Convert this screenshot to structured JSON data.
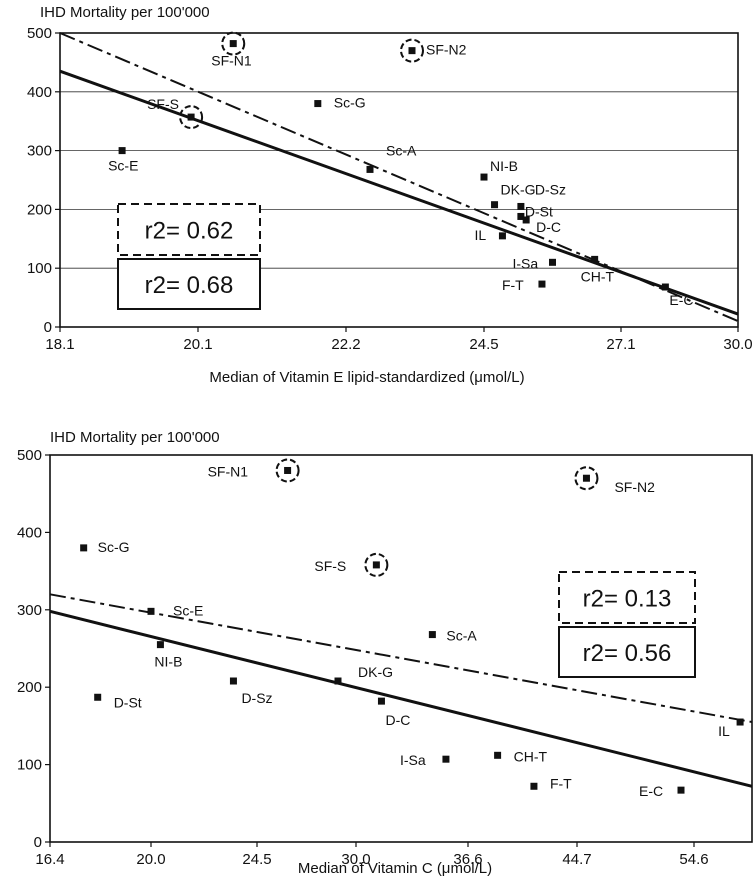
{
  "chart_data": [
    {
      "type": "scatter",
      "title": "",
      "ylabel": "IHD Mortality per 100'000",
      "xlabel": "Median of Vitamin E lipid-standardized (μmol/L)",
      "x_ticks": [
        "18.1",
        "20.1",
        "22.2",
        "24.5",
        "27.1",
        "30.0"
      ],
      "y_ticks": [
        0,
        100,
        200,
        300,
        400,
        500
      ],
      "ylim": [
        0,
        500
      ],
      "grid": "horizontal",
      "points": [
        {
          "label": "SF-N1",
          "x": 20.6,
          "y": 482,
          "circled": true
        },
        {
          "label": "SF-N2",
          "x": 23.3,
          "y": 470,
          "circled": true
        },
        {
          "label": "SF-S",
          "x": 20.0,
          "y": 357,
          "circled": true
        },
        {
          "label": "Sc-G",
          "x": 21.8,
          "y": 380
        },
        {
          "label": "Sc-E",
          "x": 19.0,
          "y": 300
        },
        {
          "label": "Sc-A",
          "x": 22.6,
          "y": 268
        },
        {
          "label": "NI-B",
          "x": 24.5,
          "y": 255
        },
        {
          "label": "DK-G",
          "x": 24.7,
          "y": 208
        },
        {
          "label": "D-Sz",
          "x": 25.2,
          "y": 205
        },
        {
          "label": "D-St",
          "x": 25.2,
          "y": 188
        },
        {
          "label": "D-C",
          "x": 25.3,
          "y": 182
        },
        {
          "label": "IL",
          "x": 24.85,
          "y": 155
        },
        {
          "label": "I-Sa",
          "x": 25.8,
          "y": 110
        },
        {
          "label": "F-T",
          "x": 25.6,
          "y": 73
        },
        {
          "label": "CH-T",
          "x": 26.6,
          "y": 115
        },
        {
          "label": "E-C",
          "x": 28.2,
          "y": 68
        }
      ],
      "fits": [
        {
          "style": "dashed",
          "r2_label": "r2= 0.62",
          "y_at_xmin": 500,
          "y_at_xmax": 10
        },
        {
          "style": "solid",
          "r2_label": "r2= 0.68",
          "y_at_xmin": 435,
          "y_at_xmax": 22
        }
      ]
    },
    {
      "type": "scatter",
      "title": "",
      "ylabel": "IHD Mortality per 100'000",
      "xlabel": "Median of Vitamin C (μmol/L)",
      "x_ticks": [
        "16.4",
        "20.0",
        "24.5",
        "30.0",
        "36.6",
        "44.7",
        "54.6"
      ],
      "y_ticks": [
        0,
        100,
        200,
        300,
        400,
        500
      ],
      "ylim": [
        0,
        500
      ],
      "grid": "none",
      "points": [
        {
          "label": "SF-N1",
          "x": 26.2,
          "y": 480,
          "circled": true
        },
        {
          "label": "SF-N2",
          "x": 45.5,
          "y": 470,
          "circled": true
        },
        {
          "label": "SF-S",
          "x": 31.2,
          "y": 358,
          "circled": true
        },
        {
          "label": "Sc-G",
          "x": 17.6,
          "y": 380
        },
        {
          "label": "Sc-E",
          "x": 20.0,
          "y": 298
        },
        {
          "label": "Sc-A",
          "x": 34.5,
          "y": 268
        },
        {
          "label": "NI-B",
          "x": 20.4,
          "y": 255
        },
        {
          "label": "D-St",
          "x": 18.1,
          "y": 187
        },
        {
          "label": "D-Sz",
          "x": 23.5,
          "y": 208
        },
        {
          "label": "DK-G",
          "x": 29.0,
          "y": 208
        },
        {
          "label": "D-C",
          "x": 31.5,
          "y": 182
        },
        {
          "label": "IL",
          "x": 58.5,
          "y": 155
        },
        {
          "label": "I-Sa",
          "x": 35.3,
          "y": 107
        },
        {
          "label": "CH-T",
          "x": 38.8,
          "y": 112
        },
        {
          "label": "F-T",
          "x": 41.5,
          "y": 72
        },
        {
          "label": "E-C",
          "x": 53.5,
          "y": 67
        }
      ],
      "fits": [
        {
          "style": "dashed",
          "r2_label": "r2= 0.13",
          "y_at_xmin": 320,
          "y_at_xmax": 155
        },
        {
          "style": "solid",
          "r2_label": "r2= 0.56",
          "y_at_xmin": 298,
          "y_at_xmax": 72
        }
      ]
    }
  ]
}
